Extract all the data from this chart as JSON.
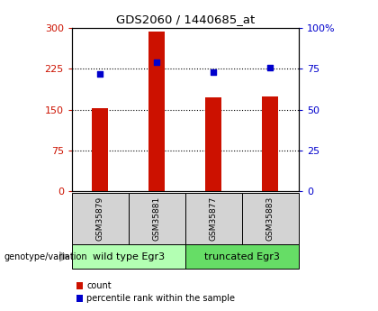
{
  "title": "GDS2060 / 1440685_at",
  "samples": [
    "GSM35879",
    "GSM35881",
    "GSM35877",
    "GSM35883"
  ],
  "bar_values": [
    152,
    293,
    172,
    175
  ],
  "percentile_values": [
    72,
    79,
    73,
    76
  ],
  "group_colors": {
    "wild type Egr3": "#b3ffb3",
    "truncated Egr3": "#66dd66"
  },
  "bar_color": "#cc1100",
  "percentile_color": "#0000cc",
  "ylim_left": [
    0,
    300
  ],
  "ylim_right": [
    0,
    100
  ],
  "yticks_left": [
    0,
    75,
    150,
    225,
    300
  ],
  "yticks_right": [
    0,
    25,
    50,
    75,
    100
  ],
  "yticklabels_right": [
    "0",
    "25",
    "50",
    "75",
    "100%"
  ],
  "grid_values": [
    75,
    150,
    225
  ],
  "left_label_color": "#cc1100",
  "right_label_color": "#0000cc",
  "sample_bg_color": "#d3d3d3",
  "legend_count_label": "count",
  "legend_pct_label": "percentile rank within the sample",
  "genotype_label": "genotype/variation"
}
